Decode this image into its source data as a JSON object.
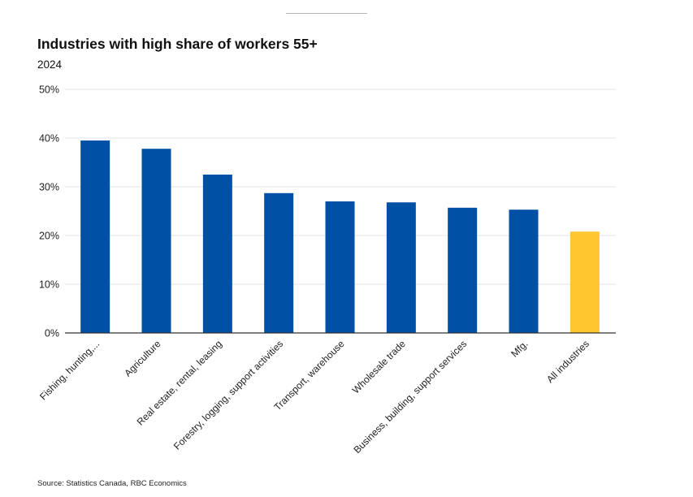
{
  "header": {
    "title": "Industries with high share of workers 55+",
    "subtitle": "2024"
  },
  "footer": {
    "source": "Source: Statistics Canada, RBC Economics"
  },
  "chart_data": {
    "type": "bar",
    "title": "Industries with high share of workers 55+",
    "subtitle": "2024",
    "xlabel": "",
    "ylabel": "",
    "ylim": [
      0,
      50
    ],
    "yticks": [
      0,
      10,
      20,
      30,
      40,
      50
    ],
    "ytick_labels": [
      "0%",
      "10%",
      "20%",
      "30%",
      "40%",
      "50%"
    ],
    "grid": true,
    "legend": "none",
    "categories": [
      "Fishing, hunting,...",
      "Agriculture",
      "Real estate, rental, leasing",
      "Forestry, logging, support activities",
      "Transport, warehouse",
      "Wholesale trade",
      "Business, building, support services",
      "Mfg.",
      "All industries"
    ],
    "values": [
      39.5,
      37.8,
      32.5,
      28.7,
      27.0,
      26.8,
      25.7,
      25.3,
      20.8
    ],
    "colors": [
      "#0051a5",
      "#0051a5",
      "#0051a5",
      "#0051a5",
      "#0051a5",
      "#0051a5",
      "#0051a5",
      "#0051a5",
      "#ffc62f"
    ],
    "unit": "%",
    "source": "Source: Statistics Canada, RBC Economics"
  }
}
